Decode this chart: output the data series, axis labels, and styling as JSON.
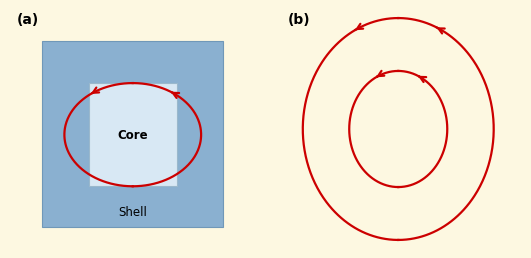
{
  "bg_color_a": "#fdf8e1",
  "bg_color_b": "#cfe0ef",
  "shell_color": "#8ab0d0",
  "core_color": "#d8e8f4",
  "curve_color": "#cc0000",
  "label_a": "(a)",
  "label_b": "(b)",
  "core_label": "Core",
  "shell_label": "Shell",
  "lw": 1.6
}
